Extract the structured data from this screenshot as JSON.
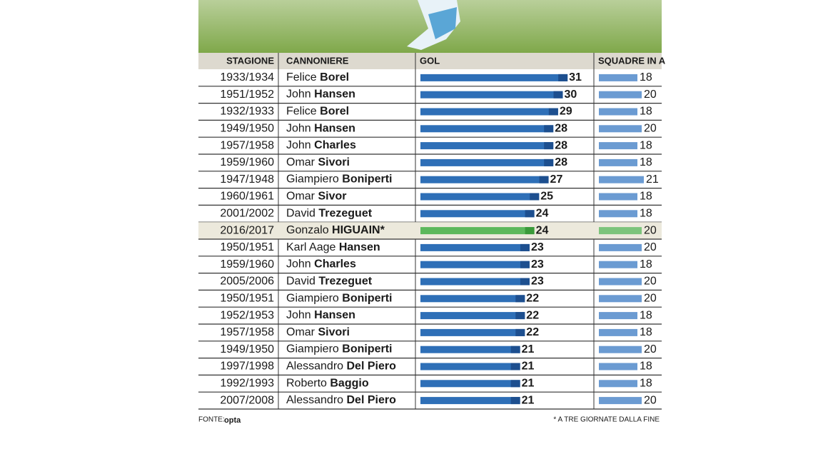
{
  "table": {
    "headers": [
      "STAGIONE",
      "CANNONIERE",
      "GOL",
      "SQUADRE IN A"
    ],
    "highlight_row": 9,
    "bar_color": "#2e6fb7",
    "bar_end_color": "#1d4f8f",
    "team_bar_color": "#6b9bd2",
    "highlight_color": "#5cb85c",
    "highlight_end_color": "#3a9a3a",
    "highlight_team_color": "#7cc47c",
    "rows": [
      {
        "season": "1933/1934",
        "first": "Felice",
        "last": "Borel",
        "goals": 31,
        "teams": 18
      },
      {
        "season": "1951/1952",
        "first": "John",
        "last": "Hansen",
        "goals": 30,
        "teams": 20
      },
      {
        "season": "1932/1933",
        "first": "Felice",
        "last": "Borel",
        "goals": 29,
        "teams": 18
      },
      {
        "season": "1949/1950",
        "first": "John",
        "last": "Hansen",
        "goals": 28,
        "teams": 20
      },
      {
        "season": "1957/1958",
        "first": "John",
        "last": "Charles",
        "goals": 28,
        "teams": 18
      },
      {
        "season": "1959/1960",
        "first": "Omar",
        "last": "Sivori",
        "goals": 28,
        "teams": 18
      },
      {
        "season": "1947/1948",
        "first": "Giampiero",
        "last": "Boniperti",
        "goals": 27,
        "teams": 21
      },
      {
        "season": "1960/1961",
        "first": "Omar",
        "last": "Sivor",
        "goals": 25,
        "teams": 18
      },
      {
        "season": "2001/2002",
        "first": "David",
        "last": "Trezeguet",
        "goals": 24,
        "teams": 18
      },
      {
        "season": "2016/2017",
        "first": "Gonzalo",
        "last": "HIGUAIN*",
        "goals": 24,
        "teams": 20
      },
      {
        "season": "1950/1951",
        "first": "Karl Aage",
        "last": "Hansen",
        "goals": 23,
        "teams": 20
      },
      {
        "season": "1959/1960",
        "first": "John",
        "last": "Charles",
        "goals": 23,
        "teams": 18
      },
      {
        "season": "2005/2006",
        "first": "David",
        "last": "Trezeguet",
        "goals": 23,
        "teams": 20
      },
      {
        "season": "1950/1951",
        "first": "Giampiero",
        "last": "Boniperti",
        "goals": 22,
        "teams": 20
      },
      {
        "season": "1952/1953",
        "first": "John",
        "last": "Hansen",
        "goals": 22,
        "teams": 18
      },
      {
        "season": "1957/1958",
        "first": "Omar",
        "last": "Sivori",
        "goals": 22,
        "teams": 18
      },
      {
        "season": "1949/1950",
        "first": "Giampiero",
        "last": "Boniperti",
        "goals": 21,
        "teams": 20
      },
      {
        "season": "1997/1998",
        "first": "Alessandro",
        "last": "Del Piero",
        "goals": 21,
        "teams": 18
      },
      {
        "season": "1992/1993",
        "first": "Roberto",
        "last": "Baggio",
        "goals": 21,
        "teams": 18
      },
      {
        "season": "2007/2008",
        "first": "Alessandro",
        "last": "Del Piero",
        "goals": 21,
        "teams": 20
      }
    ]
  },
  "footer": {
    "source_label": "FONTE:",
    "source": "opta",
    "note": "* A TRE GIORNATE DALLA FINE"
  }
}
